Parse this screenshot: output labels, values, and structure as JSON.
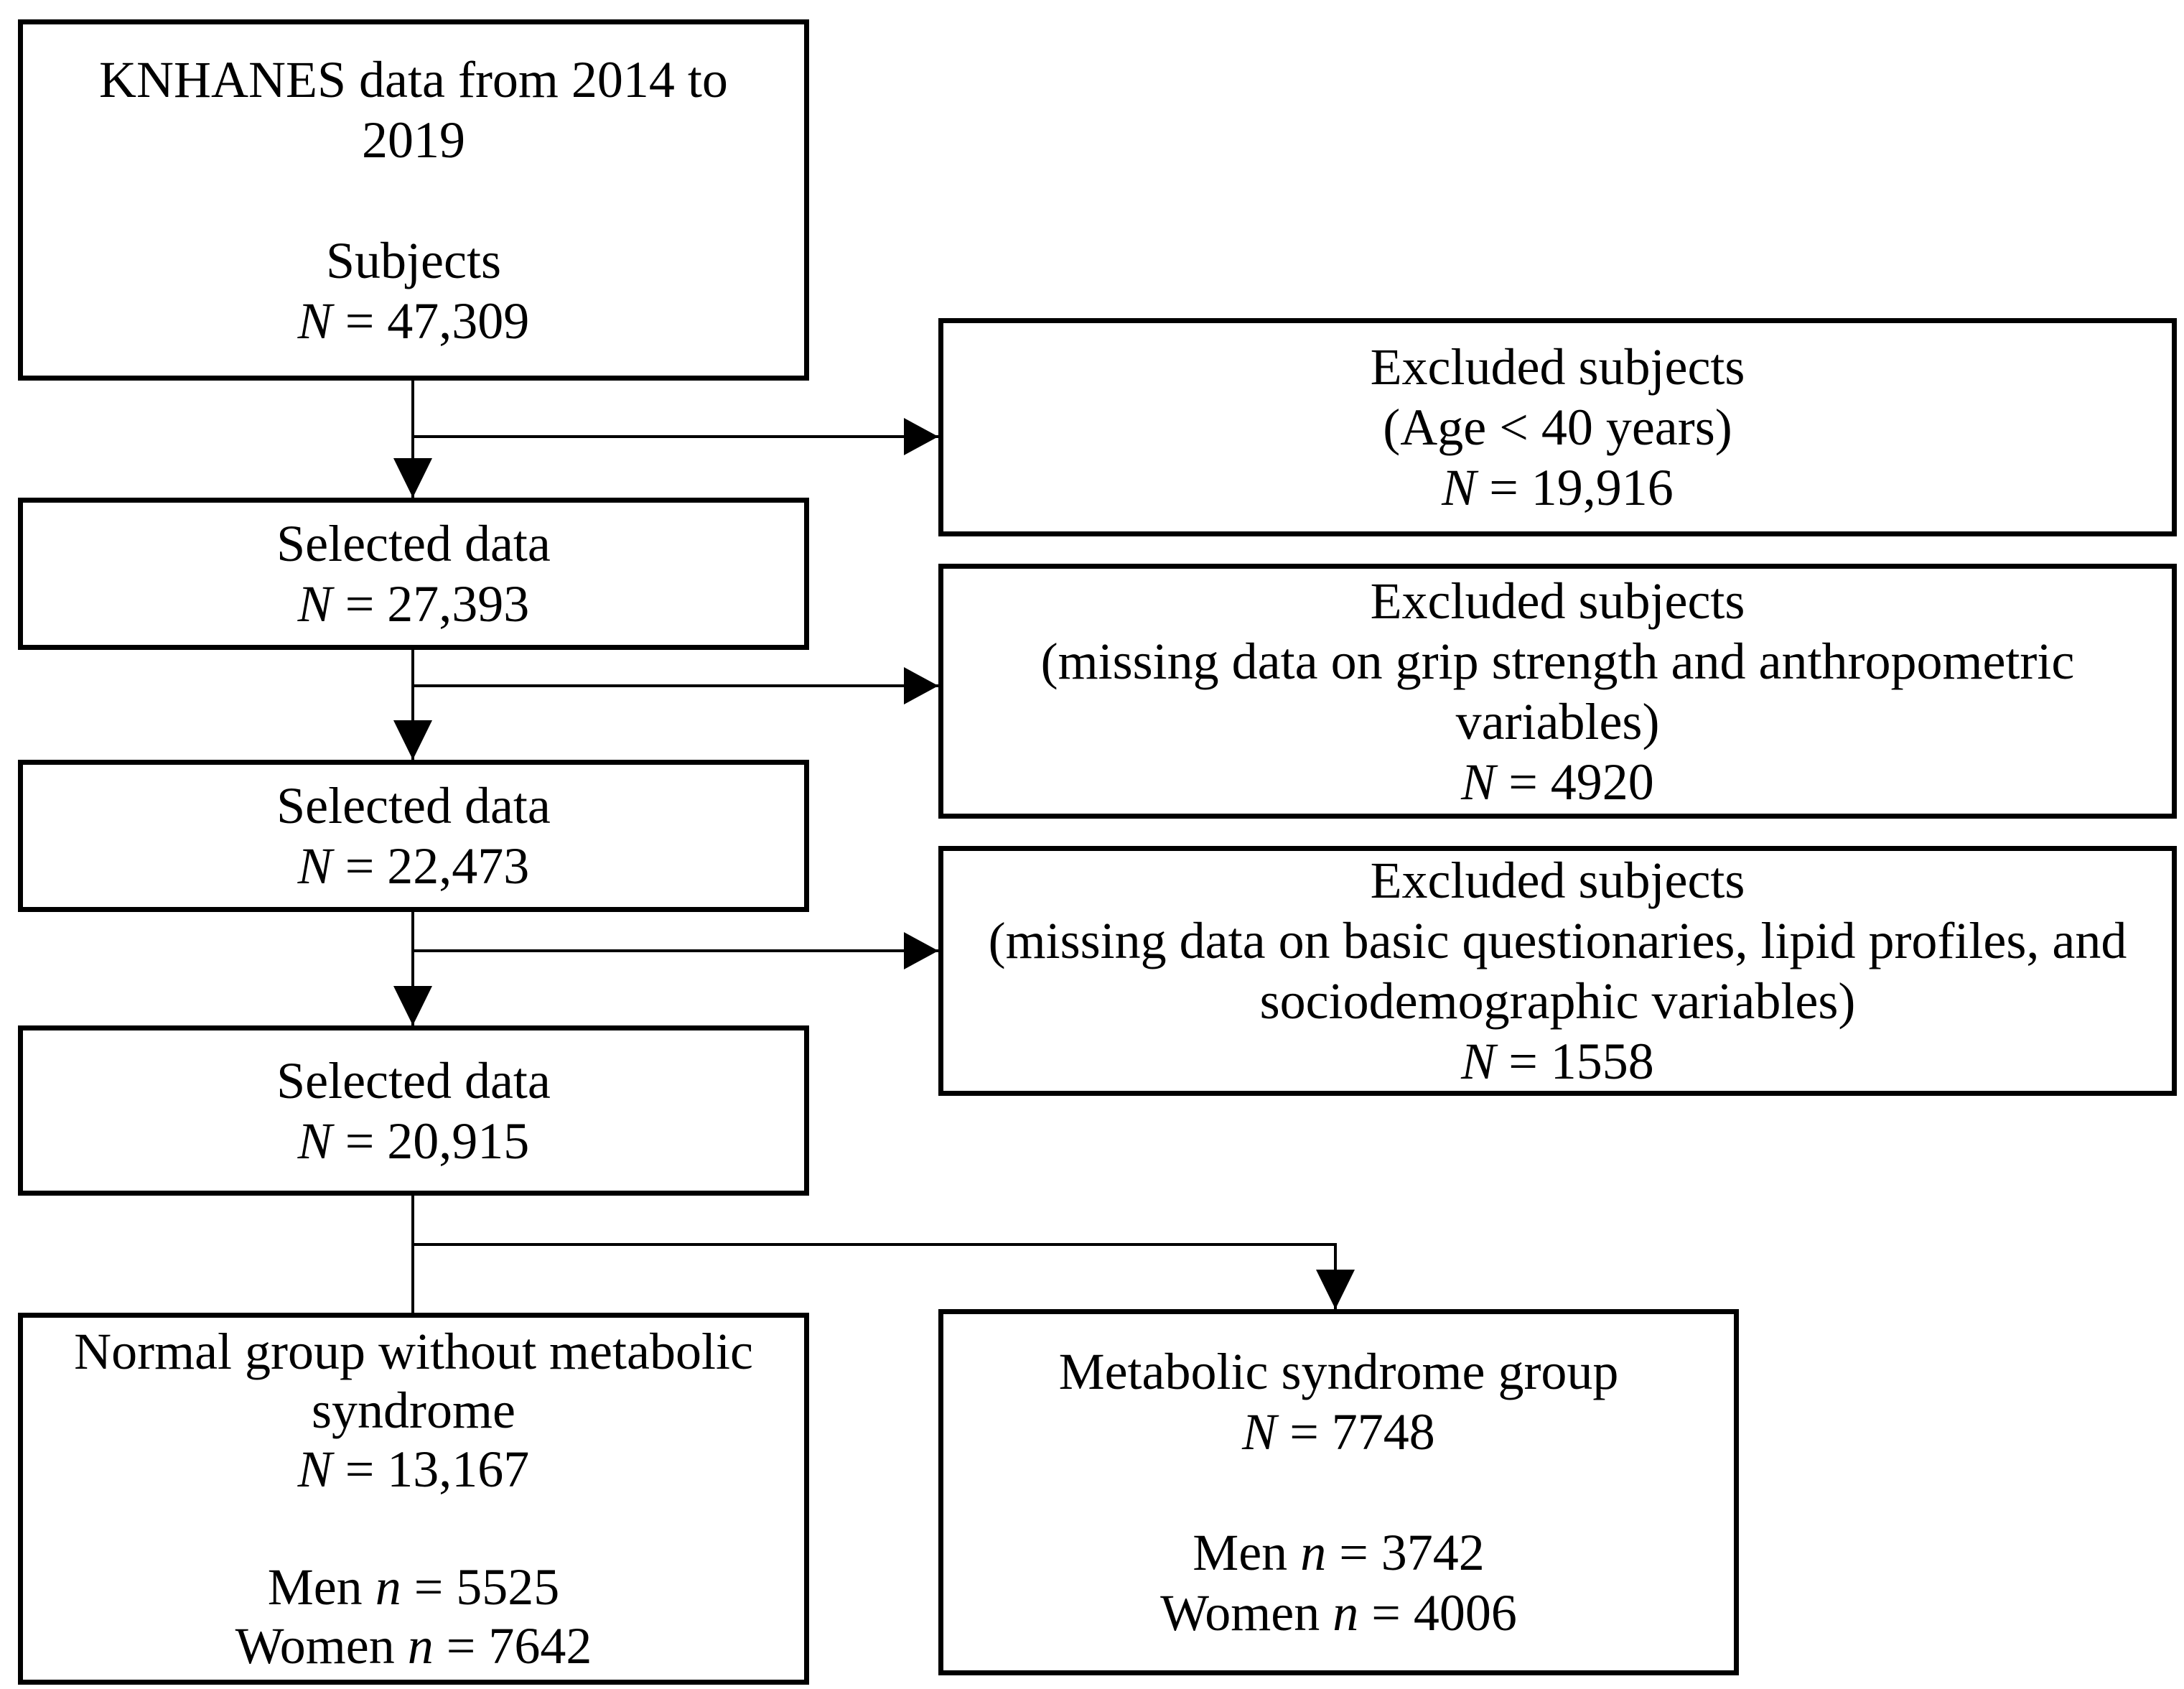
{
  "colors": {
    "background": "#ffffff",
    "box_border": "#000000",
    "connector": "#000000",
    "text": "#000000"
  },
  "diagram_type": "study-flowchart",
  "boxes": {
    "source": {
      "lines": [
        {
          "p": "KNHANES data from 2014 to",
          "v": "",
          "s": ""
        },
        {
          "p": "2019",
          "v": "",
          "s": ""
        },
        {
          "p": "",
          "v": "",
          "s": ""
        },
        {
          "p": "Subjects",
          "v": "",
          "s": ""
        },
        {
          "p": "",
          "v": "N",
          "s": " = 47,309"
        }
      ]
    },
    "excluded1": {
      "lines": [
        {
          "p": "Excluded subjects",
          "v": "",
          "s": ""
        },
        {
          "p": "(Age < 40 years)",
          "v": "",
          "s": ""
        },
        {
          "p": "",
          "v": "N",
          "s": " = 19,916"
        }
      ]
    },
    "selected1": {
      "lines": [
        {
          "p": "Selected data",
          "v": "",
          "s": ""
        },
        {
          "p": "",
          "v": "N",
          "s": " = 27,393"
        }
      ]
    },
    "excluded2": {
      "lines": [
        {
          "p": "Excluded subjects",
          "v": "",
          "s": ""
        },
        {
          "p": "(missing data on grip strength and anthropometric",
          "v": "",
          "s": ""
        },
        {
          "p": "variables)",
          "v": "",
          "s": ""
        },
        {
          "p": "",
          "v": "N",
          "s": " = 4920"
        }
      ]
    },
    "selected2": {
      "lines": [
        {
          "p": "Selected data",
          "v": "",
          "s": ""
        },
        {
          "p": "",
          "v": "N",
          "s": " = 22,473"
        }
      ]
    },
    "excluded3": {
      "lines": [
        {
          "p": "Excluded subjects",
          "v": "",
          "s": ""
        },
        {
          "p": "(missing data on basic questionaries, lipid profiles, and",
          "v": "",
          "s": ""
        },
        {
          "p": "sociodemographic variables)",
          "v": "",
          "s": ""
        },
        {
          "p": "",
          "v": "N",
          "s": " = 1558"
        }
      ]
    },
    "selected3": {
      "lines": [
        {
          "p": "Selected data",
          "v": "",
          "s": ""
        },
        {
          "p": "",
          "v": "N",
          "s": " = 20,915"
        }
      ]
    },
    "normal_group": {
      "lines": [
        {
          "p": "Normal group without metabolic",
          "v": "",
          "s": ""
        },
        {
          "p": "syndrome",
          "v": "",
          "s": ""
        },
        {
          "p": "",
          "v": "N",
          "s": " = 13,167"
        },
        {
          "p": "",
          "v": "",
          "s": ""
        },
        {
          "p": "Men ",
          "v": "n",
          "s": " = 5525"
        },
        {
          "p": "Women ",
          "v": "n",
          "s": " = 7642"
        }
      ]
    },
    "mets_group": {
      "lines": [
        {
          "p": "Metabolic syndrome group",
          "v": "",
          "s": ""
        },
        {
          "p": "",
          "v": "N",
          "s": " = 7748"
        },
        {
          "p": "",
          "v": "",
          "s": ""
        },
        {
          "p": "Men ",
          "v": "n",
          "s": " = 3742"
        },
        {
          "p": "Women ",
          "v": "n",
          "s": " = 4006"
        }
      ]
    }
  }
}
